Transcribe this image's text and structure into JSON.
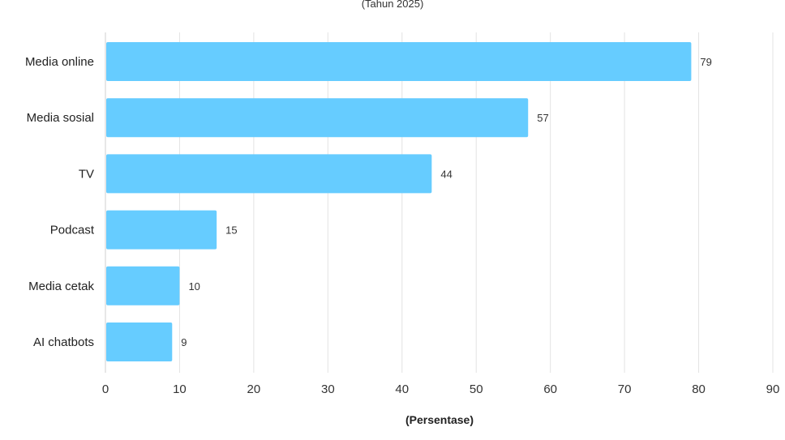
{
  "chart_data": {
    "type": "bar",
    "orientation": "horizontal",
    "subtitle": "(Tahun 2025)",
    "xlabel": "(Persentase)",
    "ylabel": "",
    "categories": [
      "Media online",
      "Media sosial",
      "TV",
      "Podcast",
      "Media cetak",
      "AI chatbots"
    ],
    "values": [
      79,
      57,
      44,
      15,
      10,
      9
    ],
    "data_labels": [
      "79",
      "57",
      "44",
      "15",
      "10",
      "9"
    ],
    "xlim": [
      0,
      90
    ],
    "xticks": [
      0,
      10,
      20,
      30,
      40,
      50,
      60,
      70,
      80,
      90
    ],
    "xtick_labels": [
      "0",
      "10",
      "20",
      "30",
      "40",
      "50",
      "60",
      "70",
      "80",
      "90"
    ],
    "grid": "vertical",
    "legend": "none",
    "bar_color": "#66ccff",
    "grid_color": "#e3e3e3"
  }
}
